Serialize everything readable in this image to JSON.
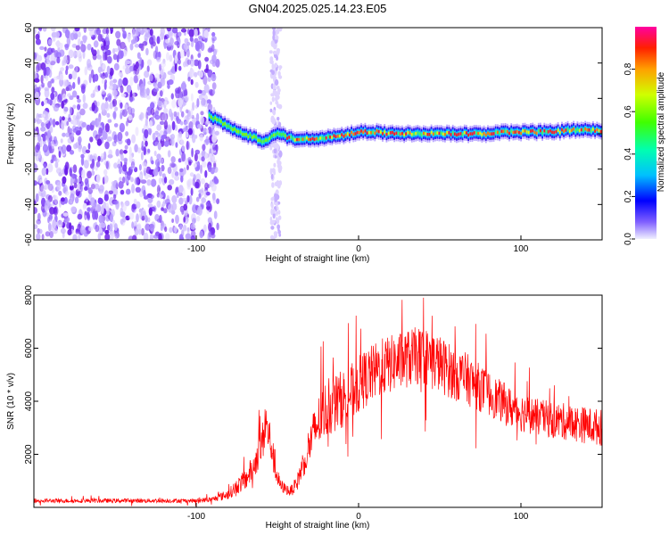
{
  "title": "GN04.2025.025.14.23.E05",
  "chart_data": [
    {
      "type": "heatmap",
      "xlabel": "Height of straight line (km)",
      "ylabel": "Frequency (Hz)",
      "xlim": [
        -200,
        150
      ],
      "ylim": [
        -60,
        60
      ],
      "x_ticks": [
        -100,
        0,
        100
      ],
      "y_ticks": [
        60,
        40,
        20,
        0,
        -20,
        -40,
        -60
      ],
      "noise_region_x": [
        -200,
        -90
      ],
      "spike_band_x": [
        -54,
        -48
      ],
      "ridge": {
        "x": [
          -92,
          -88,
          -84,
          -80,
          -76,
          -72,
          -68,
          -64,
          -60,
          -56,
          -52,
          -48,
          -44,
          -40,
          -30,
          -20,
          -10,
          0,
          10,
          20,
          30,
          40,
          50,
          60,
          70,
          80,
          90,
          100,
          110,
          120,
          130,
          140,
          150
        ],
        "frequency": [
          10,
          8,
          6,
          4,
          2,
          0,
          -1,
          -2,
          -4,
          -3,
          0,
          0,
          -2,
          -3,
          -3,
          -2,
          -1,
          1,
          1,
          0,
          0,
          0,
          0,
          0,
          0,
          0,
          1,
          1,
          1,
          1,
          2,
          2,
          2
        ]
      },
      "colorbar": {
        "label": "Normalized spectral amplitude",
        "range": [
          0,
          1
        ],
        "ticks": [
          0.0,
          0.2,
          0.4,
          0.6,
          0.8
        ],
        "tick_labels": [
          "0.0",
          "0.2",
          "0.4",
          "0.6",
          "0.8"
        ]
      }
    },
    {
      "type": "line",
      "xlabel": "Height of straight line (km)",
      "ylabel": "SNR (10 * v/v)",
      "xlim": [
        -200,
        150
      ],
      "ylim": [
        0,
        8000
      ],
      "x_ticks": [
        -100,
        0,
        100
      ],
      "y_ticks": [
        2000,
        4000,
        6000,
        8000
      ],
      "grid": false,
      "color": "#ff0000",
      "series": [
        {
          "x": [
            -200,
            -180,
            -160,
            -140,
            -120,
            -100,
            -90,
            -80,
            -75,
            -70,
            -65,
            -60,
            -57,
            -54,
            -51,
            -48,
            -45,
            -42,
            -38,
            -35,
            -30,
            -25,
            -20,
            -15,
            -10,
            -5,
            0,
            5,
            10,
            15,
            20,
            25,
            30,
            35,
            40,
            45,
            50,
            55,
            60,
            65,
            70,
            75,
            80,
            85,
            90,
            95,
            100,
            110,
            120,
            130,
            140,
            150
          ],
          "y": [
            250,
            250,
            250,
            250,
            250,
            250,
            300,
            500,
            800,
            1000,
            1500,
            2300,
            3100,
            2400,
            1300,
            800,
            700,
            600,
            900,
            1500,
            2400,
            3200,
            3700,
            3900,
            4100,
            4300,
            4600,
            4900,
            5100,
            5300,
            5400,
            5500,
            5600,
            5700,
            5700,
            5600,
            5400,
            5200,
            5000,
            4900,
            4700,
            4500,
            4300,
            4100,
            3900,
            3700,
            3600,
            3400,
            3300,
            3200,
            3100,
            3000
          ],
          "spread": [
            80,
            80,
            80,
            80,
            80,
            80,
            100,
            200,
            300,
            400,
            500,
            700,
            900,
            700,
            400,
            250,
            200,
            200,
            300,
            500,
            800,
            1000,
            1100,
            1100,
            1100,
            1100,
            1100,
            1100,
            1100,
            1100,
            1100,
            1100,
            1100,
            1100,
            1100,
            1100,
            1100,
            1050,
            1000,
            1000,
            950,
            900,
            850,
            800,
            800,
            750,
            750,
            700,
            700,
            700,
            700,
            700
          ]
        }
      ]
    }
  ]
}
